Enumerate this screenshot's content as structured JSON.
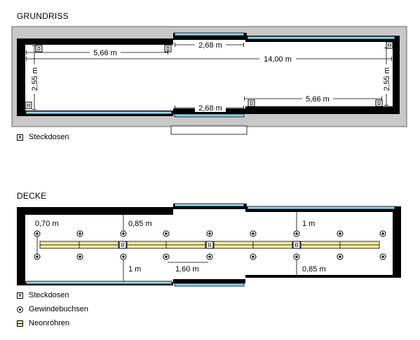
{
  "plan": {
    "title": "GRUNDRISS",
    "dims": {
      "top_left": "5,66 m",
      "top_door": "2,68 m",
      "total": "14,00 m",
      "left_height": "2,55 m",
      "right_height": "2,55 m",
      "bottom_door": "2,68 m",
      "bottom_right": "5,66 m"
    },
    "legend": {
      "socket": "Steckdosen"
    }
  },
  "ceiling": {
    "title": "DECKE",
    "dims": {
      "a": "0,70 m",
      "b": "0,85 m",
      "c": "1 m",
      "d": "1 m",
      "e": "1,60 m",
      "f": "0,85 m"
    },
    "legend": {
      "socket": "Steckdosen",
      "thread": "Gewindebuchsen",
      "neon": "Neonröhren"
    }
  },
  "colors": {
    "wall": "#000000",
    "outer": "#c8c8c8",
    "window": "#8fd3ea",
    "neon": "#f3ea9c"
  }
}
